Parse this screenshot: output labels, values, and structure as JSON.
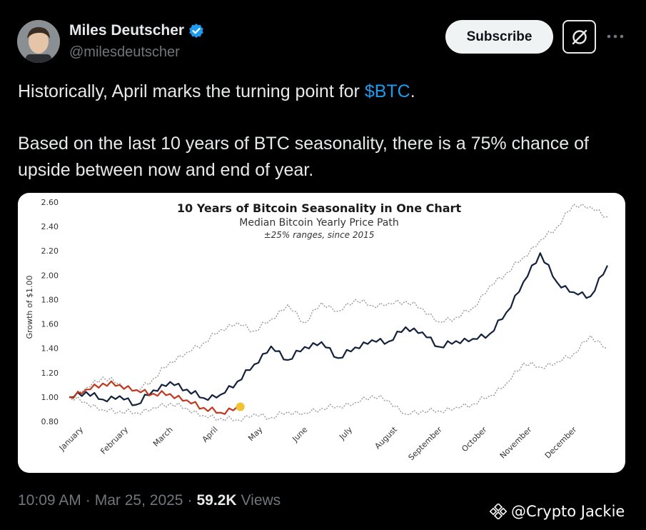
{
  "author": {
    "display_name": "Miles Deutscher",
    "handle": "@milesdeutscher",
    "verified": true,
    "verified_color": "#1d9bf0"
  },
  "actions": {
    "subscribe_label": "Subscribe",
    "grok_icon": "grok-icon",
    "more_icon": "more-dots-icon"
  },
  "tweet": {
    "line1_before": "Historically, April marks the turning point for ",
    "cashtag": "$BTC",
    "line1_after": ".",
    "line2": "Based on the last 10 years of BTC seasonality, there is a 75% chance of upside between now and end of year."
  },
  "chart_data": {
    "type": "line",
    "title": "10 Years of Bitcoin Seasonality in One Chart",
    "subtitle": "Median Bitcoin Yearly Price Path",
    "subtitle2": "±25% ranges, since 2015",
    "ylabel": "Growth of $1.00",
    "ylim": [
      0.8,
      2.6
    ],
    "y_ticks": [
      "0.80",
      "1.00",
      "1.20",
      "1.40",
      "1.60",
      "1.80",
      "2.00",
      "2.20",
      "2.40",
      "2.60"
    ],
    "x_ticks": [
      "January",
      "February",
      "March",
      "April",
      "May",
      "June",
      "July",
      "August",
      "September",
      "October",
      "November",
      "December"
    ],
    "series": [
      {
        "values": [
          1.0,
          1.08,
          1.16,
          1.1,
          1.06,
          1.15,
          1.28,
          1.38,
          1.45,
          1.55,
          1.6,
          1.55,
          1.64,
          1.75,
          1.62,
          1.78,
          1.7,
          1.79,
          1.76,
          1.77,
          1.78,
          1.74,
          1.62,
          1.65,
          1.72,
          1.92,
          2.02,
          2.14,
          2.3,
          2.4,
          2.58,
          2.55,
          2.48
        ],
        "color": "#999999",
        "dash": true
      },
      {
        "values": [
          1.0,
          1.05,
          0.98,
          1.0,
          0.95,
          1.06,
          1.12,
          1.05,
          1.0,
          1.02,
          1.12,
          1.28,
          1.42,
          1.3,
          1.4,
          1.46,
          1.32,
          1.4,
          1.48,
          1.46,
          1.57,
          1.52,
          1.42,
          1.46,
          1.47,
          1.53,
          1.7,
          1.94,
          2.17,
          1.95,
          1.86,
          1.82,
          2.08
        ],
        "color": "#14213d",
        "dash": false
      },
      {
        "values": [
          1.0,
          0.97,
          0.9,
          0.88,
          0.86,
          0.92,
          0.95,
          0.9,
          0.86,
          0.83,
          0.81,
          0.85,
          0.84,
          0.88,
          0.86,
          0.92,
          0.93,
          0.95,
          1.0,
          0.98,
          0.86,
          0.88,
          0.9,
          0.92,
          0.94,
          1.0,
          1.12,
          1.28,
          1.24,
          1.3,
          1.36,
          1.5,
          1.4
        ],
        "color": "#999999",
        "dash": true
      },
      {
        "values": [
          1.0,
          1.05,
          1.12,
          1.1,
          1.05,
          1.04,
          1.03,
          0.97,
          0.9,
          0.88,
          0.92
        ],
        "color": "#c0391f",
        "dash": false,
        "end_marker_color": "#f2c230"
      }
    ]
  },
  "meta": {
    "time": "10:09 AM",
    "separator": "·",
    "date": "Mar 25, 2025",
    "views_count": "59.2K",
    "views_label": "Views"
  },
  "watermark": {
    "text": "@Crypto Jackie"
  }
}
